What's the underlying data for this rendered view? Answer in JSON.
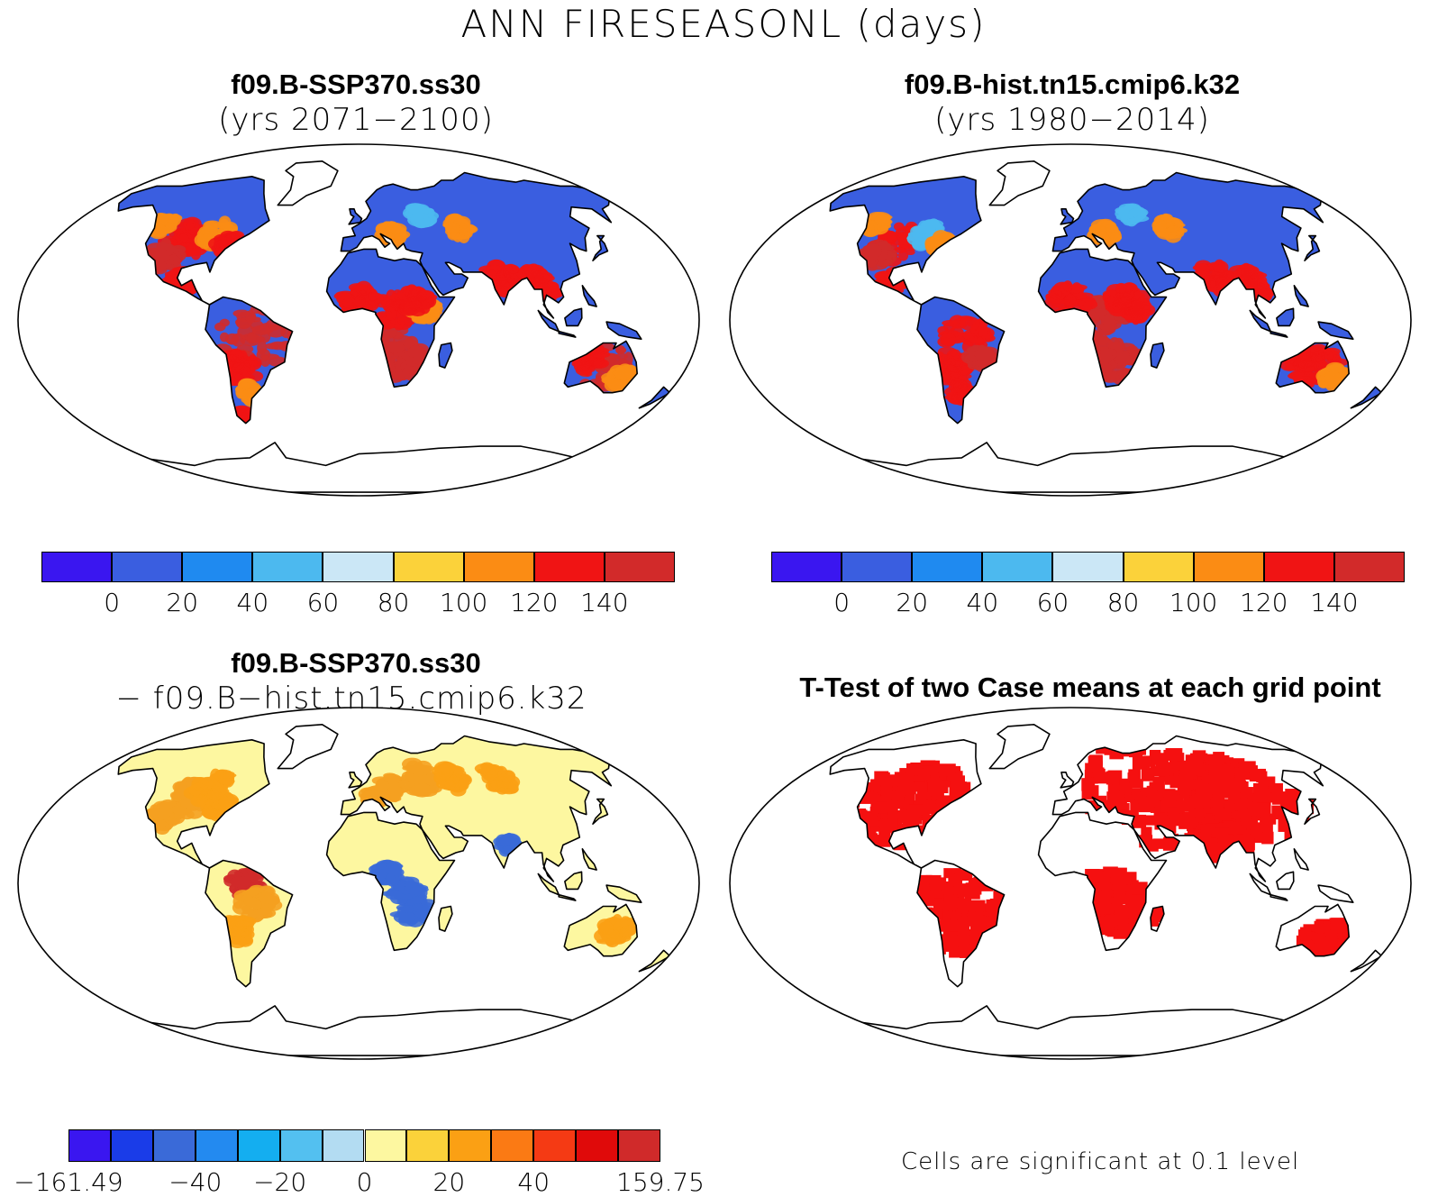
{
  "main_title": "ANN FIRESEASONL (days)",
  "panels": {
    "top_left": {
      "case": "f09.B-SSP370.ss30",
      "years": "(yrs 2071−2100)"
    },
    "top_right": {
      "case": "f09.B-hist.tn15.cmip6.k32",
      "years": "(yrs 1980−2014)"
    },
    "bottom_left": {
      "case": "f09.B-SSP370.ss30",
      "minus_case": "− f09.B−hist.tn15.cmip6.k32"
    },
    "bottom_right": {
      "title": "T-Test of two Case means at each grid point",
      "note": "Cells are significant at 0.1 level"
    }
  },
  "colorbar_abs": {
    "colors": [
      "#3a16f0",
      "#3a5ee0",
      "#1f8af0",
      "#4cb9ef",
      "#cbe7f6",
      "#fbd23a",
      "#fb8c14",
      "#f01414",
      "#d22a2a"
    ],
    "labels": [
      "0",
      "20",
      "40",
      "60",
      "80",
      "100",
      "120",
      "140"
    ]
  },
  "colorbar_diff": {
    "colors": [
      "#3a16f0",
      "#1a3ce8",
      "#3a6ad8",
      "#238af0",
      "#14aef0",
      "#53c0f0",
      "#b3dcf2",
      "#fdf7a0",
      "#fbd23a",
      "#fba014",
      "#fb7a14",
      "#f53a14",
      "#e00a0a",
      "#d02a2a"
    ],
    "labels": [
      "−161.49",
      "−40",
      "−20",
      "0",
      "20",
      "40",
      "159.75"
    ]
  },
  "map_colors": {
    "ocean": "#ffffff",
    "abs_base": "#3a5ee0",
    "abs_hot": "#d22a2a",
    "abs_warm": "#f01414",
    "abs_mid": "#fb8c14",
    "abs_cool": "#4cb9ef",
    "diff_base": "#fdf7a0",
    "diff_warm": "#fba014",
    "diff_hot": "#d02a2a",
    "diff_cool": "#3a6ad8",
    "ttest_sig": "#f51010"
  }
}
